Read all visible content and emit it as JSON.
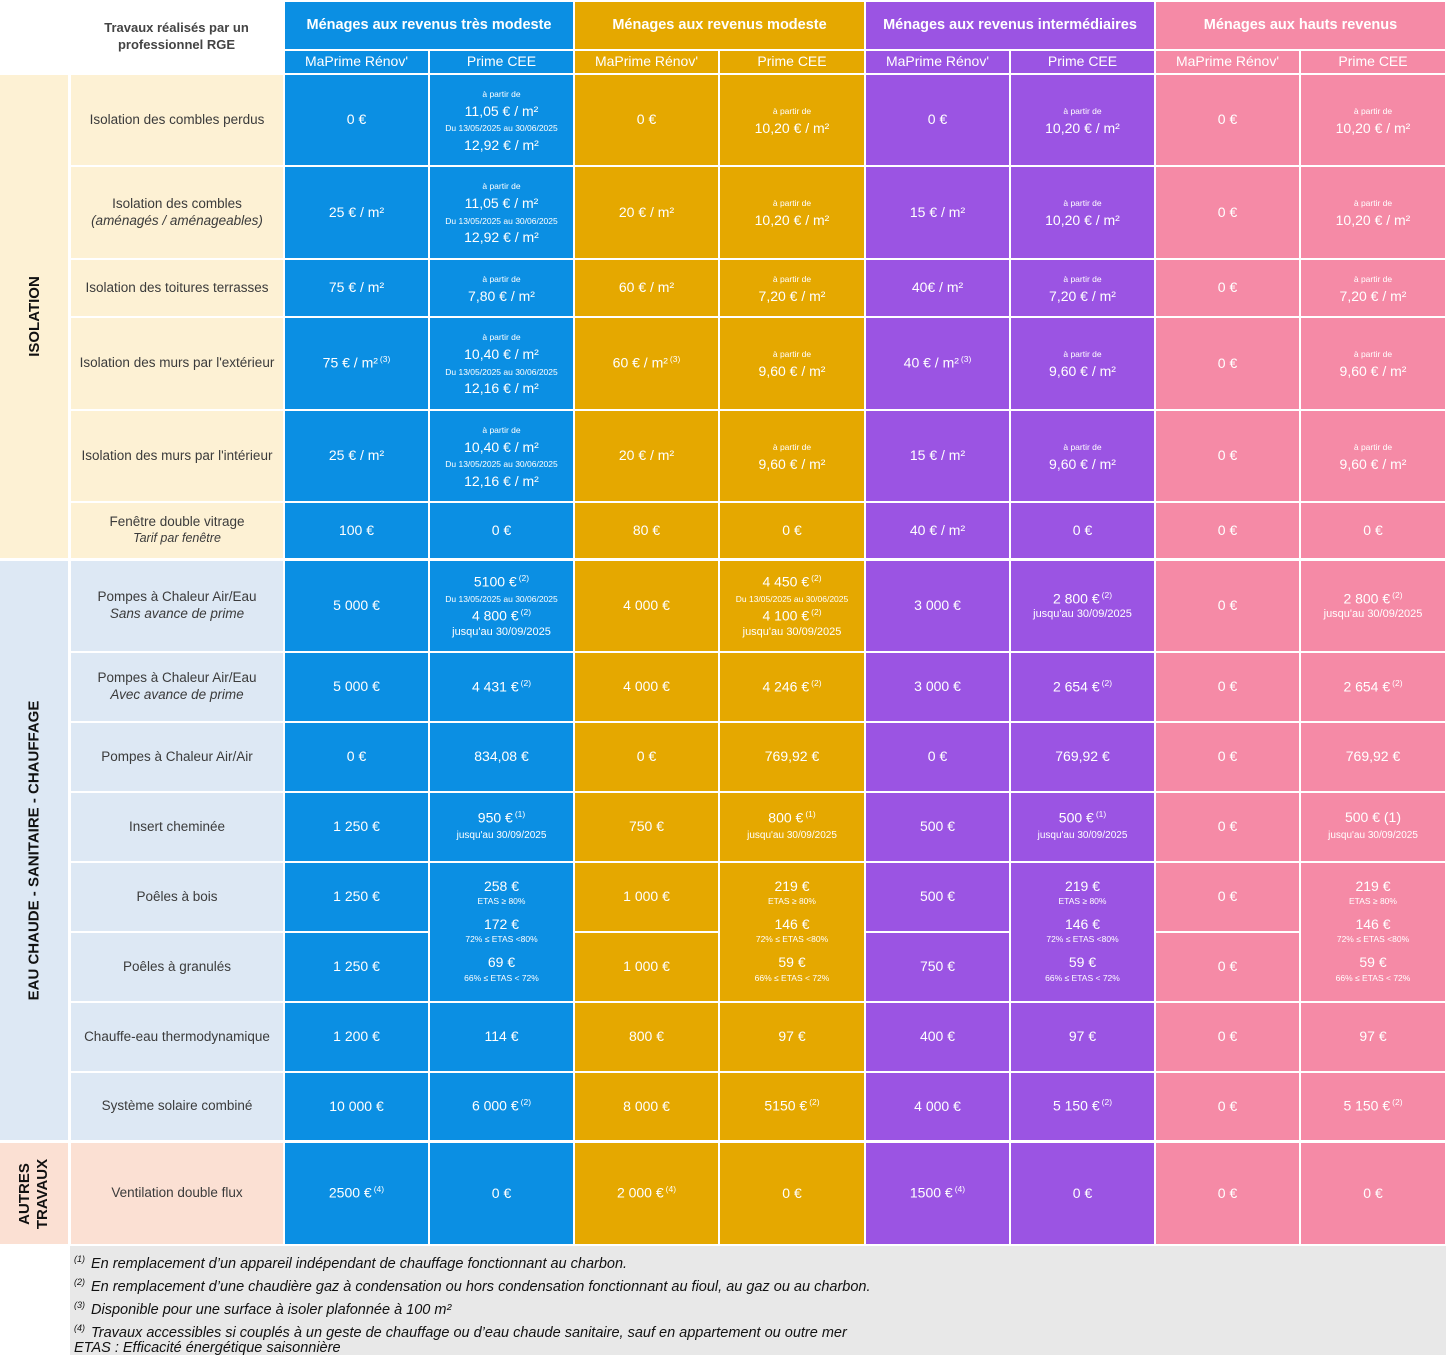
{
  "corner": "Travaux réalisés par un professionnel RGE",
  "groups": [
    {
      "title": "Ménages aux revenus très modeste",
      "color": "#0b8fe3"
    },
    {
      "title": "Ménages aux revenus modeste",
      "color": "#e5a800"
    },
    {
      "title": "Ménages aux revenus intermédiaires",
      "color": "#9b54e3"
    },
    {
      "title": "Ménages aux hauts revenus",
      "color": "#f58aa6"
    }
  ],
  "subcols": {
    "a": "MaPrime Rénov'",
    "b": "Prime CEE"
  },
  "categories": {
    "isolation": "ISOLATION",
    "chauffage": "EAU CHAUDE - SANITAIRE - CHAUFFAGE",
    "autres_1": "AUTRES",
    "autres_2": "TRAVAUX"
  },
  "common": {
    "apartir": "à partir de",
    "du": "Du 13/05/2025 au 30/06/2025",
    "jusqu": "jusqu'au 30/09/2025",
    "zero": "0 €"
  },
  "rows": {
    "r1": {
      "label": "Isolation des combles perdus"
    },
    "r2": {
      "label": "Isolation des combles",
      "label2": "(aménagés / aménageables)"
    },
    "r3": {
      "label": "Isolation des toitures terrasses"
    },
    "r4": {
      "label": "Isolation des murs par l'extérieur"
    },
    "r5": {
      "label": "Isolation des murs par l'intérieur"
    },
    "r6": {
      "label": "Fenêtre double vitrage",
      "label2": "Tarif par fenêtre"
    },
    "r7": {
      "label": "Pompes à Chaleur Air/Eau",
      "label2": "Sans avance de prime"
    },
    "r8": {
      "label": "Pompes à Chaleur Air/Eau",
      "label2": "Avec avance de prime"
    },
    "r9": {
      "label": "Pompes à Chaleur Air/Air"
    },
    "r10": {
      "label": "Insert cheminée"
    },
    "r11": {
      "label": "Poêles à bois"
    },
    "r12": {
      "label": "Poêles à granulés"
    },
    "r13": {
      "label": "Chauffe-eau thermodynamique"
    },
    "r14": {
      "label": "Système solaire combiné"
    },
    "r15": {
      "label": "Ventilation double flux"
    }
  },
  "vals": {
    "v11_05": "11,05 € / m²",
    "v12_92": "12,92 € / m²",
    "v10_20": "10,20 € / m²",
    "v7_80": "7,80 € / m²",
    "v7_20": "7,20 € / m²",
    "v10_40": "10,40 € / m²",
    "v12_16": "12,16 € / m²",
    "v9_60": "9,60 € / m²",
    "m25": "25 € / m²",
    "m20": "20 € / m²",
    "m15": "15 € / m²",
    "m75": "75 € / m²",
    "m60": "60 € / m²",
    "m40": "40€ / m²",
    "m75s": "75 € / m²",
    "m60s": "60 € / m²",
    "m40s": "40 € / m²",
    "m40b": "40 € / m²",
    "e100": "100 €",
    "e80": "80 €",
    "e5000": "5 000 €",
    "e4000": "4 000 €",
    "e3000": "3 000 €",
    "e5100": "5100 €",
    "e4800": "4 800 €",
    "e4450": "4 450 €",
    "e4100": "4 100 €",
    "e2800": "2 800 €",
    "e4431": "4 431 €",
    "e4246": "4 246 €",
    "e2654": "2 654 €",
    "e834": "834,08 €",
    "e769": "769,92 €",
    "e1250": "1 250 €",
    "e750": "750 €",
    "e500": "500 €",
    "e1000": "1 000 €",
    "e950": "950 €",
    "e800": "800 €",
    "e500b": "500 €",
    "e500p": "500 € (1)",
    "e258": "258 €",
    "e172": "172 €",
    "e69": "69 €",
    "e219": "219 €",
    "e146": "146 €",
    "e59": "59 €",
    "etas80": "ETAS  ≥ 80%",
    "etas72": "72% ≤ ETAS <80%",
    "etas66": "66% ≤ ETAS < 72%",
    "e1200": "1 200 €",
    "e800b": "800 €",
    "e400": "400 €",
    "e114": "114 €",
    "e97": "97 €",
    "e10000": "10 000 €",
    "e8000": "8 000 €",
    "e4000b": "4 000 €",
    "e6000": "6 000 €",
    "e5150a": "5150 €",
    "e5150": "5 150 €",
    "e2500": "2500 €",
    "e2000": "2 000 €",
    "e1500": "1500 €"
  },
  "sups": {
    "s1": "(1)",
    "s2": "(2)",
    "s3": "(3)",
    "s4": "(4)"
  },
  "footnotes": [
    {
      "sup": "(1)",
      "text": "En remplacement d’un appareil indépendant de chauffage fonctionnant au charbon."
    },
    {
      "sup": "(2)",
      "text": "En remplacement d’une chaudière gaz à condensation ou hors condensation fonctionnant au fioul, au gaz ou au charbon."
    },
    {
      "sup": "(3)",
      "text": "Disponible pour une surface à isoler plafonnée à 100 m²"
    },
    {
      "sup": "(4)",
      "text": "Travaux accessibles si couplés à un geste de chauffage ou d’eau chaude sanitaire, sauf en appartement ou outre mer"
    },
    {
      "sup": "",
      "text": "ETAS : Efficacité énergétique saisonnière"
    }
  ]
}
